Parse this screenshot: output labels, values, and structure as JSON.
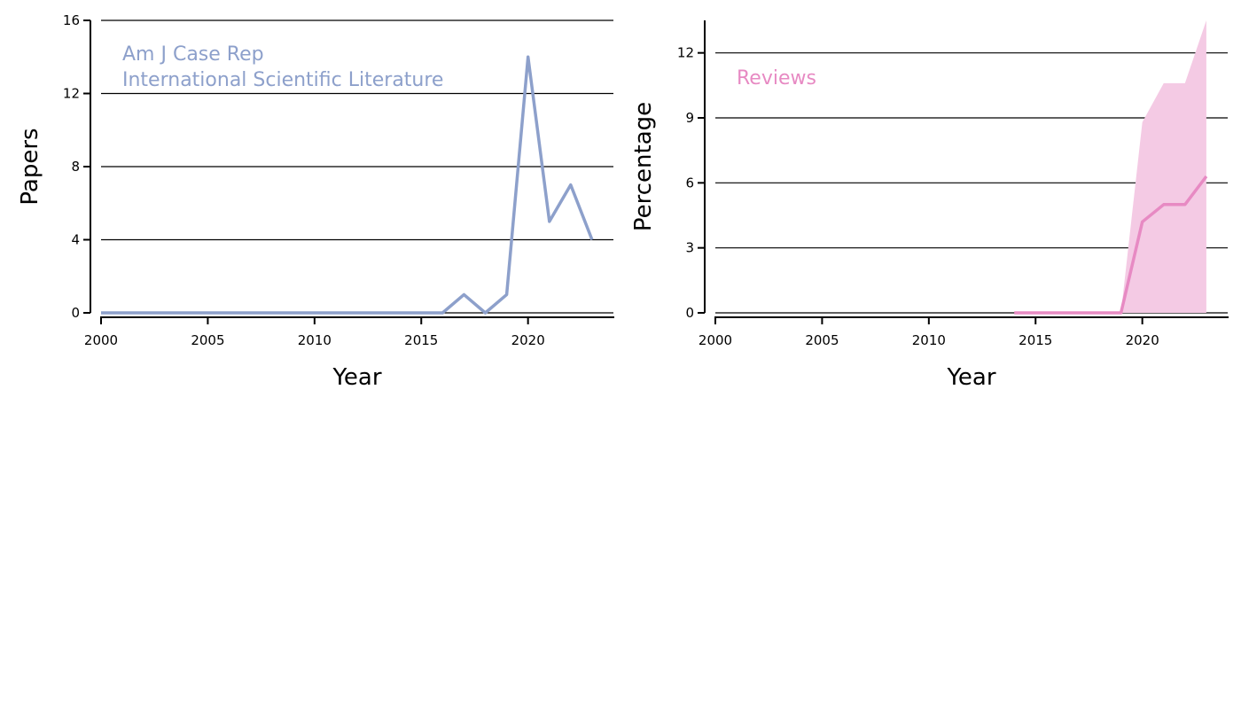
{
  "colors": {
    "left_series": "#8da0cb",
    "right_series": "#e78ac3",
    "right_band": "#f4cae4",
    "grid": "#000000",
    "axis": "#000000"
  },
  "chart_data": [
    {
      "type": "line",
      "xlabel": "Year",
      "ylabel": "Papers",
      "xlim": [
        2000,
        24.0
      ],
      "ylim": [
        0,
        16
      ],
      "xticks": [
        "2000",
        "2005",
        "2010",
        "2015",
        "2020"
      ],
      "yticks": [
        "0",
        "4",
        "8",
        "12",
        "16"
      ],
      "grid": "horizontal",
      "annotation": [
        "Am J Case Rep",
        "International Scientific Literature"
      ],
      "series": [
        {
          "x": [
            2000,
            2001,
            2002,
            2003,
            2004,
            2005,
            2006,
            2007,
            2008,
            2009,
            2010,
            2011,
            2012,
            2013,
            2014,
            2015,
            2016,
            2017,
            2018,
            2019,
            2020,
            2021,
            2022,
            2023
          ],
          "values": [
            0,
            0,
            0,
            0,
            0,
            0,
            0,
            0,
            0,
            0,
            0,
            0,
            0,
            0,
            0,
            0,
            0,
            1,
            0,
            1,
            14,
            5,
            7,
            4
          ]
        }
      ]
    },
    {
      "type": "area",
      "xlabel": "Year",
      "ylabel": "Percentage",
      "xlim": [
        2000,
        2024
      ],
      "ylim": [
        0,
        13.5
      ],
      "xticks": [
        "2000",
        "2005",
        "2010",
        "2015",
        "2020"
      ],
      "yticks": [
        "0",
        "3",
        "6",
        "9",
        "12"
      ],
      "grid": "horizontal",
      "annotation": [
        "Reviews"
      ],
      "series": [
        {
          "x": [
            2014,
            2015,
            2016,
            2017,
            2018,
            2019,
            2020,
            2021,
            2022,
            2023
          ],
          "values": [
            0,
            0,
            0,
            0,
            0,
            0,
            4.2,
            5.0,
            5.0,
            6.3
          ],
          "lower": [
            0,
            0,
            0,
            0,
            0,
            0,
            0,
            0,
            0,
            0
          ],
          "upper": [
            0,
            0,
            0,
            0,
            0,
            0,
            8.8,
            10.6,
            10.6,
            13.5
          ]
        }
      ]
    }
  ]
}
